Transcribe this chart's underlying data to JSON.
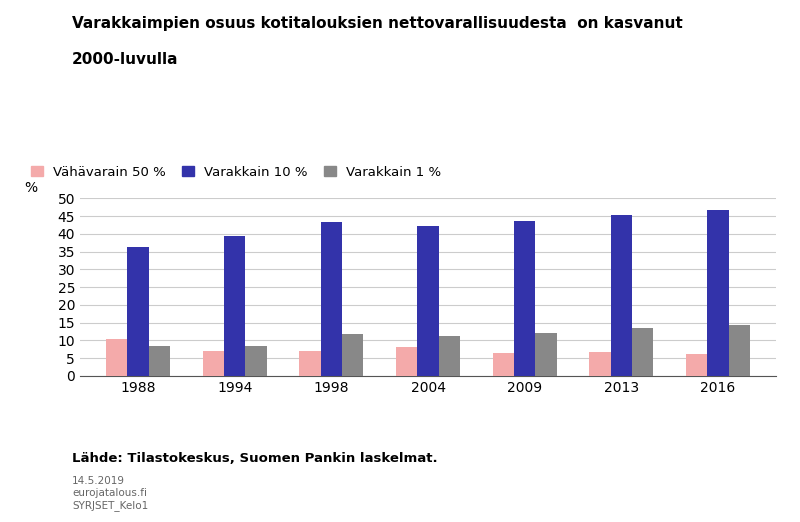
{
  "title_line1": "Varakkaimpien osuus kotitalouksien nettovarallisuudesta  on kasvanut",
  "title_line2": "2000-luvulla",
  "years": [
    "1988",
    "1994",
    "1998",
    "2004",
    "2009",
    "2013",
    "2016"
  ],
  "series": {
    "Vähävarain 50 %": [
      10.3,
      7.0,
      7.0,
      8.2,
      6.3,
      6.7,
      6.2
    ],
    "Varakkain 10 %": [
      36.2,
      39.4,
      43.3,
      42.3,
      43.7,
      45.3,
      46.8
    ],
    "Varakkain 1 %": [
      8.4,
      8.5,
      11.7,
      11.1,
      12.0,
      13.4,
      14.2
    ]
  },
  "colors": {
    "Vähävarain 50 %": "#F4AAAA",
    "Varakkain 10 %": "#3333AA",
    "Varakkain 1 %": "#888888"
  },
  "ylim": [
    0,
    50
  ],
  "yticks": [
    0,
    5,
    10,
    15,
    20,
    25,
    30,
    35,
    40,
    45,
    50
  ],
  "ylabel": "%",
  "source": "Lähde: Tilastokeskus, Suomen Pankin laskelmat.",
  "footnote1": "14.5.2019",
  "footnote2": "eurojatalous.fi",
  "footnote3": "SYRJSET_Kelo1",
  "bar_width": 0.22,
  "legend_order": [
    "Vähävarain 50 %",
    "Varakkain 10 %",
    "Varakkain 1 %"
  ],
  "background_color": "#FFFFFF",
  "grid_color": "#CCCCCC"
}
